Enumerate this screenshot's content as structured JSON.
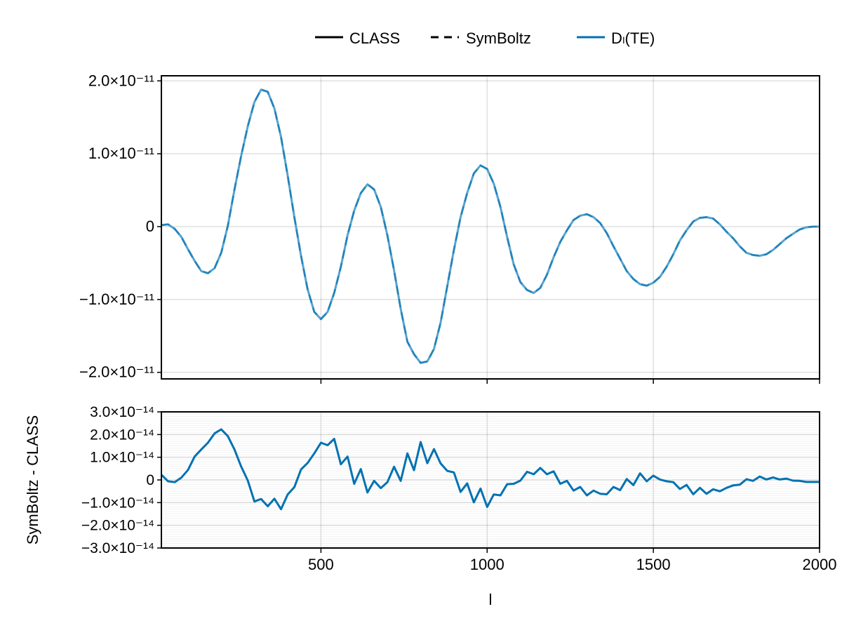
{
  "chart_data": [
    {
      "type": "line",
      "panel": "top",
      "title": "",
      "xlabel": "",
      "ylabel": "",
      "xlim": [
        20,
        2000
      ],
      "ylim": [
        -2.09e-11,
        2.07e-11
      ],
      "grid": true,
      "xticks": [
        500,
        1000,
        1500,
        2000
      ],
      "yticks": [
        -2e-11,
        -1e-11,
        0,
        1e-11,
        2e-11
      ],
      "ytick_labels": [
        "−2.0×10⁻¹¹",
        "−1.0×10⁻¹¹",
        "0",
        "1.0×10⁻¹¹",
        "2.0×10⁻¹¹"
      ],
      "legend": {
        "placement": "top",
        "entries": [
          {
            "label": "CLASS",
            "style": "solid",
            "color": "#000000"
          },
          {
            "label": "SymBoltz",
            "style": "dashed",
            "color": "#000000"
          },
          {
            "label": "Dₗ(TE)",
            "style": "solid",
            "color": "#0072b2"
          }
        ]
      },
      "x": {
        "start": 20,
        "step": 20,
        "count": 100
      },
      "series": [
        {
          "name": "CLASS",
          "color": "#0072b2",
          "style": "solid",
          "values": [
            2e-13,
            3e-13,
            -3e-13,
            -1.4e-12,
            -3.1e-12,
            -4.7e-12,
            -6.1e-12,
            -6.4e-12,
            -5.7e-12,
            -3.6e-12,
            1e-13,
            5.1e-12,
            9.7e-12,
            1.38e-11,
            1.71e-11,
            1.88e-11,
            1.85e-11,
            1.62e-11,
            1.23e-11,
            7e-12,
            1.3e-12,
            -4e-12,
            -8.6e-12,
            -1.17e-11,
            -1.27e-11,
            -1.17e-11,
            -9.1e-12,
            -5.5e-12,
            -1.2e-12,
            2.2e-12,
            4.6e-12,
            5.8e-12,
            5.1e-12,
            2.7e-12,
            -1.2e-12,
            -6e-12,
            -1.13e-11,
            -1.58e-11,
            -1.75e-11,
            -1.87e-11,
            -1.85e-11,
            -1.68e-11,
            -1.32e-11,
            -8.2e-12,
            -3.2e-12,
            1.3e-12,
            4.6e-12,
            7.3e-12,
            8.4e-12,
            7.9e-12,
            5.9e-12,
            2.7e-12,
            -1.4e-12,
            -5.2e-12,
            -7.6e-12,
            -8.7e-12,
            -9.1e-12,
            -8.4e-12,
            -6.6e-12,
            -4.2e-12,
            -2.1e-12,
            -5e-13,
            9e-13,
            1.5e-12,
            1.7e-12,
            1.3e-12,
            5e-13,
            -9e-13,
            -2.7e-12,
            -4.4e-12,
            -6.1e-12,
            -7.2e-12,
            -7.9e-12,
            -8.1e-12,
            -7.7e-12,
            -6.9e-12,
            -5.5e-12,
            -3.8e-12,
            -1.9e-12,
            -5e-13,
            7e-13,
            1.2e-12,
            1.3e-12,
            1.1e-12,
            3e-13,
            -7e-13,
            -1.6e-12,
            -2.7e-12,
            -3.6e-12,
            -3.9e-12,
            -4e-12,
            -3.8e-12,
            -3.2e-12,
            -2.4e-12,
            -1.6e-12,
            -1e-12,
            -4e-13,
            -1e-13,
            0.0,
            0.0
          ]
        },
        {
          "name": "SymBoltz",
          "color": "#0072b2",
          "style": "dashed",
          "values": [
            2e-13,
            3e-13,
            -3e-13,
            -1.4e-12,
            -3.1e-12,
            -4.7e-12,
            -6.1e-12,
            -6.4e-12,
            -5.7e-12,
            -3.6e-12,
            1e-13,
            5.1e-12,
            9.7e-12,
            1.38e-11,
            1.71e-11,
            1.88e-11,
            1.85e-11,
            1.62e-11,
            1.23e-11,
            7e-12,
            1.3e-12,
            -4e-12,
            -8.6e-12,
            -1.17e-11,
            -1.27e-11,
            -1.17e-11,
            -9.1e-12,
            -5.5e-12,
            -1.2e-12,
            2.2e-12,
            4.6e-12,
            5.8e-12,
            5.1e-12,
            2.7e-12,
            -1.2e-12,
            -6e-12,
            -1.13e-11,
            -1.58e-11,
            -1.75e-11,
            -1.87e-11,
            -1.85e-11,
            -1.68e-11,
            -1.32e-11,
            -8.2e-12,
            -3.2e-12,
            1.3e-12,
            4.6e-12,
            7.3e-12,
            8.4e-12,
            7.9e-12,
            5.9e-12,
            2.7e-12,
            -1.4e-12,
            -5.2e-12,
            -7.6e-12,
            -8.7e-12,
            -9.1e-12,
            -8.4e-12,
            -6.6e-12,
            -4.2e-12,
            -2.1e-12,
            -5e-13,
            9e-13,
            1.5e-12,
            1.7e-12,
            1.3e-12,
            5e-13,
            -9e-13,
            -2.7e-12,
            -4.4e-12,
            -6.1e-12,
            -7.2e-12,
            -7.9e-12,
            -8.1e-12,
            -7.7e-12,
            -6.9e-12,
            -5.5e-12,
            -3.8e-12,
            -1.9e-12,
            -5e-13,
            7e-13,
            1.2e-12,
            1.3e-12,
            1.1e-12,
            3e-13,
            -7e-13,
            -1.6e-12,
            -2.7e-12,
            -3.6e-12,
            -3.9e-12,
            -4e-12,
            -3.8e-12,
            -3.2e-12,
            -2.4e-12,
            -1.6e-12,
            -1e-12,
            -4e-13,
            -1e-13,
            0.0,
            0.0
          ]
        }
      ]
    },
    {
      "type": "line",
      "panel": "bottom",
      "xlabel": "l",
      "ylabel": "SymBoltz - CLASS",
      "xlim": [
        20,
        2000
      ],
      "ylim": [
        -3e-14,
        3e-14
      ],
      "grid": true,
      "xticks": [
        500,
        1000,
        1500,
        2000
      ],
      "xtick_labels": [
        "500",
        "1000",
        "1500",
        "2000"
      ],
      "yticks": [
        -3e-14,
        -2e-14,
        -1e-14,
        0,
        1e-14,
        2e-14,
        3e-14
      ],
      "ytick_labels": [
        "−3.0×10⁻¹⁴",
        "−2.0×10⁻¹⁴",
        "−1.0×10⁻¹⁴",
        "0",
        "1.0×10⁻¹⁴",
        "2.0×10⁻¹⁴",
        "3.0×10⁻¹⁴"
      ],
      "x": {
        "start": 20,
        "step": 20,
        "count": 100
      },
      "series": [
        {
          "name": "SymBoltz - CLASS",
          "color": "#0072b2",
          "style": "solid",
          "values": [
            2.3e-15,
            -6e-16,
            -1e-15,
            1e-15,
            4.4e-15,
            1.03e-14,
            1.34e-14,
            1.64e-14,
            2.05e-14,
            2.23e-14,
            1.93e-14,
            1.34e-14,
            5.9e-15,
            -3e-16,
            -9.5e-15,
            -8.4e-15,
            -1.16e-14,
            -8.3e-15,
            -1.29e-14,
            -6.4e-15,
            -3.2e-15,
            4.6e-15,
            7.5e-15,
            1.17e-14,
            1.64e-14,
            1.53e-14,
            1.81e-14,
            6.9e-15,
            1.03e-14,
            -1.7e-15,
            4.8e-15,
            -5.5e-15,
            -4e-16,
            -3.6e-15,
            -1e-15,
            5.8e-15,
            -4e-16,
            1.17e-14,
            4.3e-15,
            1.67e-14,
            7.4e-15,
            1.36e-14,
            7.3e-15,
            4e-15,
            3.3e-15,
            -5.3e-15,
            -1.5e-15,
            -9.9e-15,
            -3.8e-15,
            -1.19e-14,
            -6.4e-15,
            -6.8e-15,
            -1.9e-15,
            -1.7e-15,
            -3e-16,
            3.6e-15,
            2.5e-15,
            5.3e-15,
            2.5e-15,
            3.8e-15,
            -1.7e-15,
            -4e-16,
            -4.7e-15,
            -3.1e-15,
            -6.8e-15,
            -4.7e-15,
            -6.1e-15,
            -6.3e-15,
            -3.1e-15,
            -4.5e-15,
            4e-16,
            -2.3e-15,
            2.9e-15,
            -6e-16,
            1.9e-15,
            2e-16,
            -6e-16,
            -1e-15,
            -4e-15,
            -2.2e-15,
            -6.3e-15,
            -3.5e-15,
            -6.1e-15,
            -4.1e-15,
            -5e-15,
            -3.5e-15,
            -2.4e-15,
            -2.1e-15,
            3e-16,
            -4e-16,
            1.5e-15,
            2e-16,
            1.1e-15,
            2e-16,
            6e-16,
            -3e-16,
            -4e-16,
            -9e-16,
            -9e-16,
            -9e-16
          ]
        }
      ]
    }
  ]
}
